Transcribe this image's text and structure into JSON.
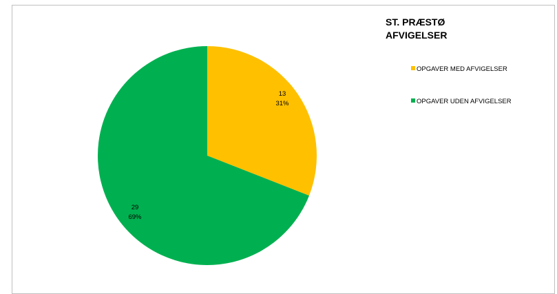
{
  "chart_data": {
    "type": "pie",
    "title": [
      "ST. PRÆSTØ",
      "AFVIGELSER"
    ],
    "slices": [
      {
        "label": "OPGAVER MED AFVIGELSER",
        "value": 13,
        "percent": "31%",
        "color": "#FFC000"
      },
      {
        "label": "OPGAVER UDEN AFVIGELSER",
        "value": 29,
        "percent": "69%",
        "color": "#00B050"
      }
    ],
    "legend_position": "right",
    "start_angle_deg": 0,
    "direction": "clockwise"
  }
}
